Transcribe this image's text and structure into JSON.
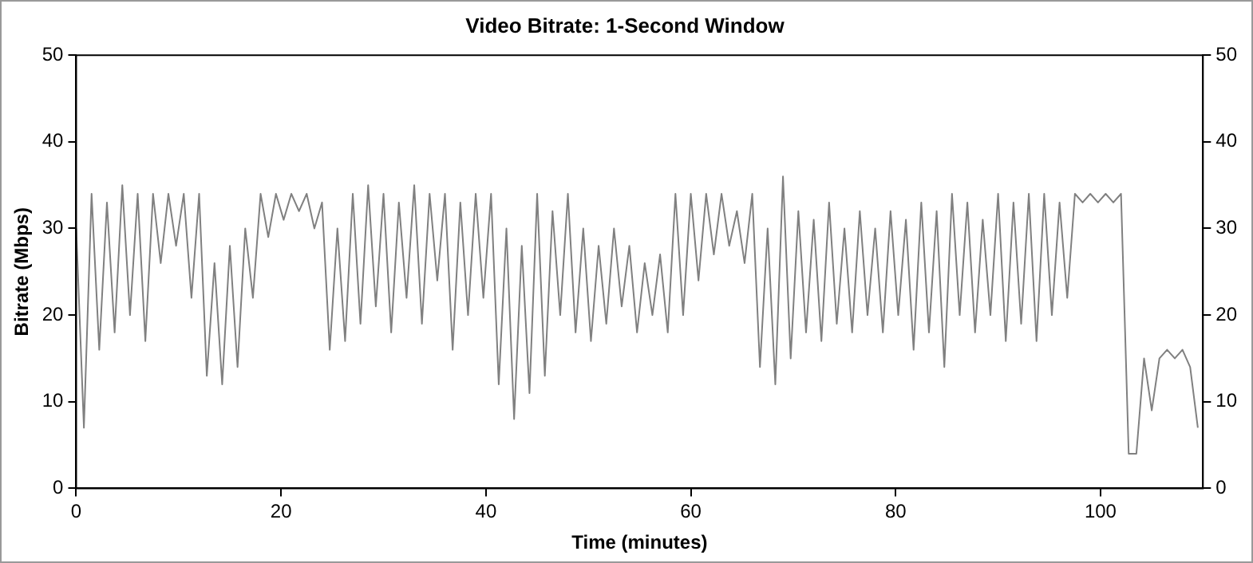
{
  "chart_data": {
    "type": "line",
    "title": "Video Bitrate: 1-Second Window",
    "xlabel": "Time (minutes)",
    "ylabel": "Bitrate (Mbps)",
    "x": [
      0,
      0.75,
      1.5,
      2.25,
      3,
      3.75,
      4.5,
      5.25,
      6,
      6.75,
      7.5,
      8.25,
      9,
      9.75,
      10.5,
      11.25,
      12,
      12.75,
      13.5,
      14.25,
      15,
      15.75,
      16.5,
      17.25,
      18,
      18.75,
      19.5,
      20.25,
      21,
      21.75,
      22.5,
      23.25,
      24,
      24.75,
      25.5,
      26.25,
      27,
      27.75,
      28.5,
      29.25,
      30,
      30.75,
      31.5,
      32.25,
      33,
      33.75,
      34.5,
      35.25,
      36,
      36.75,
      37.5,
      38.25,
      39,
      39.75,
      40.5,
      41.25,
      42,
      42.75,
      43.5,
      44.25,
      45,
      45.75,
      46.5,
      47.25,
      48,
      48.75,
      49.5,
      50.25,
      51,
      51.75,
      52.5,
      53.25,
      54,
      54.75,
      55.5,
      56.25,
      57,
      57.75,
      58.5,
      59.25,
      60,
      60.75,
      61.5,
      62.25,
      63,
      63.75,
      64.5,
      65.25,
      66,
      66.75,
      67.5,
      68.25,
      69,
      69.75,
      70.5,
      71.25,
      72,
      72.75,
      73.5,
      74.25,
      75,
      75.75,
      76.5,
      77.25,
      78,
      78.75,
      79.5,
      80.25,
      81,
      81.75,
      82.5,
      83.25,
      84,
      84.75,
      85.5,
      86.25,
      87,
      87.75,
      88.5,
      89.25,
      90,
      90.75,
      91.5,
      92.25,
      93,
      93.75,
      94.5,
      95.25,
      96,
      96.75,
      97.5,
      98.25,
      99,
      99.75,
      100.5,
      101.25,
      102,
      102.75,
      103.5,
      104.25,
      105,
      105.75,
      106.5,
      107.25,
      108,
      108.75,
      109.5
    ],
    "series": [
      {
        "color": "#808080",
        "values": [
          30,
          7,
          34,
          16,
          33,
          18,
          35,
          20,
          34,
          17,
          34,
          26,
          34,
          28,
          34,
          22,
          34,
          13,
          26,
          12,
          28,
          14,
          30,
          22,
          34,
          29,
          34,
          31,
          34,
          32,
          34,
          30,
          33,
          16,
          30,
          17,
          34,
          19,
          35,
          21,
          34,
          18,
          33,
          22,
          35,
          19,
          34,
          24,
          34,
          16,
          33,
          20,
          34,
          22,
          34,
          12,
          30,
          8,
          28,
          11,
          34,
          13,
          32,
          20,
          34,
          18,
          30,
          17,
          28,
          19,
          30,
          21,
          28,
          18,
          26,
          20,
          27,
          18,
          34,
          20,
          34,
          24,
          34,
          27,
          34,
          28,
          32,
          26,
          34,
          14,
          30,
          12,
          36,
          15,
          32,
          18,
          31,
          17,
          33,
          19,
          30,
          18,
          32,
          20,
          30,
          18,
          32,
          20,
          31,
          16,
          33,
          18,
          32,
          14,
          34,
          20,
          33,
          18,
          31,
          20,
          34,
          17,
          33,
          19,
          34,
          17,
          34,
          20,
          33,
          22,
          34,
          33,
          34,
          33,
          34,
          33,
          34,
          4,
          4,
          15,
          9,
          15,
          16,
          15,
          16,
          14,
          7
        ]
      }
    ],
    "xlim": [
      0,
      110
    ],
    "xticks": [
      0,
      20,
      40,
      60,
      80,
      100
    ],
    "ylim": [
      0,
      50
    ],
    "yticks": [
      0,
      10,
      20,
      30,
      40,
      50
    ],
    "y2lim": [
      0,
      50
    ],
    "y2ticks": [
      0,
      10,
      20,
      30,
      40,
      50
    ],
    "grid": false,
    "legend": false,
    "marker": "none",
    "line_style": "solid"
  }
}
